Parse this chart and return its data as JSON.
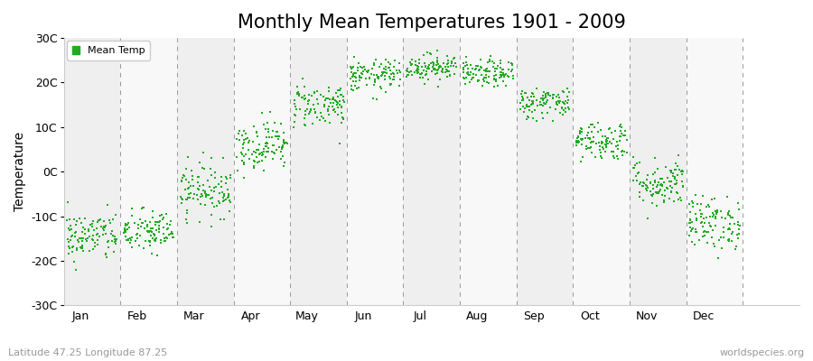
{
  "title": "Monthly Mean Temperatures 1901 - 2009",
  "ylabel": "Temperature",
  "xlabel_labels": [
    "Jan",
    "Feb",
    "Mar",
    "Apr",
    "May",
    "Jun",
    "Jul",
    "Aug",
    "Sep",
    "Oct",
    "Nov",
    "Dec"
  ],
  "ytick_labels": [
    "30C",
    "20C",
    "10C",
    "0C",
    "-10C",
    "-20C",
    "-30C"
  ],
  "ytick_values": [
    30,
    20,
    10,
    0,
    -10,
    -20,
    -30
  ],
  "ylim": [
    -30,
    30
  ],
  "legend_label": "Mean Temp",
  "dot_color": "#22aa22",
  "bg_color_light": "#efefef",
  "bg_color_lighter": "#f8f8f8",
  "subtitle": "Latitude 47.25 Longitude 87.25",
  "watermark": "worldspecies.org",
  "monthly_means": [
    -14.5,
    -13.5,
    -4.0,
    6.0,
    15.0,
    21.5,
    23.5,
    22.0,
    15.5,
    7.0,
    -2.5,
    -11.5
  ],
  "monthly_stds": [
    2.8,
    2.5,
    3.0,
    2.8,
    2.5,
    1.8,
    1.5,
    1.5,
    1.8,
    2.2,
    2.8,
    3.0
  ],
  "n_years": 109,
  "seed": 42,
  "title_fontsize": 15,
  "axis_fontsize": 9,
  "ylabel_fontsize": 10,
  "dot_size": 3
}
